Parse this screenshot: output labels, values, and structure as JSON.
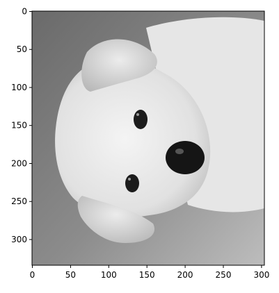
{
  "figure": {
    "x_ticks": [
      "0",
      "50",
      "100",
      "150",
      "200",
      "250",
      "300"
    ],
    "y_ticks": [
      "0",
      "50",
      "100",
      "150",
      "200",
      "250",
      "300"
    ],
    "image_content": "grayscale photo of a puppy"
  },
  "chart_data": {
    "type": "image",
    "xlim": [
      -0.5,
      303.5
    ],
    "ylim": [
      334.5,
      -0.5
    ],
    "x_ticks": [
      0,
      50,
      100,
      150,
      200,
      250,
      300
    ],
    "y_ticks": [
      0,
      50,
      100,
      150,
      200,
      250,
      300
    ],
    "grid": false
  }
}
